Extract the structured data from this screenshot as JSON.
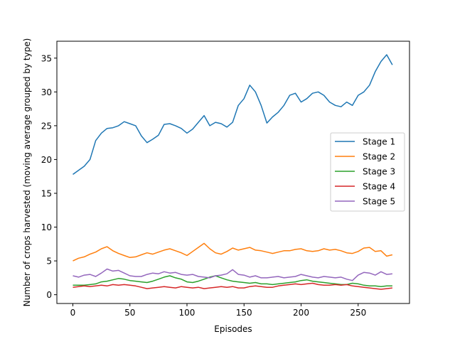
{
  "chart_data": {
    "type": "line",
    "title": "",
    "xlabel": "Episodes",
    "ylabel": "Number of crops harvested (moving average grouped by type)",
    "xlim": [
      -14,
      295
    ],
    "ylim": [
      -1.3,
      37.5
    ],
    "xticks": [
      0,
      50,
      100,
      150,
      200,
      250
    ],
    "yticks": [
      0,
      5,
      10,
      15,
      20,
      25,
      30,
      35
    ],
    "grid": false,
    "legend_position": "center-right",
    "series": [
      {
        "name": "Stage 1",
        "color": "#1f77b4",
        "points": [
          [
            0,
            17.8
          ],
          [
            5,
            18.4
          ],
          [
            10,
            19.0
          ],
          [
            15,
            20.0
          ],
          [
            20,
            22.8
          ],
          [
            25,
            23.9
          ],
          [
            30,
            24.6
          ],
          [
            35,
            24.7
          ],
          [
            40,
            25.0
          ],
          [
            45,
            25.6
          ],
          [
            50,
            25.3
          ],
          [
            55,
            25.0
          ],
          [
            60,
            23.5
          ],
          [
            65,
            22.5
          ],
          [
            70,
            23.0
          ],
          [
            75,
            23.6
          ],
          [
            80,
            25.2
          ],
          [
            85,
            25.3
          ],
          [
            90,
            25.0
          ],
          [
            95,
            24.6
          ],
          [
            100,
            23.9
          ],
          [
            105,
            24.5
          ],
          [
            110,
            25.5
          ],
          [
            115,
            26.5
          ],
          [
            120,
            25.0
          ],
          [
            125,
            25.5
          ],
          [
            130,
            25.3
          ],
          [
            135,
            24.8
          ],
          [
            140,
            25.5
          ],
          [
            145,
            28.0
          ],
          [
            150,
            29.0
          ],
          [
            155,
            31.0
          ],
          [
            160,
            30.0
          ],
          [
            165,
            28.0
          ],
          [
            170,
            25.4
          ],
          [
            175,
            26.3
          ],
          [
            180,
            27.0
          ],
          [
            185,
            28.0
          ],
          [
            190,
            29.5
          ],
          [
            195,
            29.8
          ],
          [
            200,
            28.5
          ],
          [
            205,
            29.0
          ],
          [
            210,
            29.8
          ],
          [
            215,
            30.0
          ],
          [
            220,
            29.5
          ],
          [
            225,
            28.5
          ],
          [
            230,
            28.0
          ],
          [
            235,
            27.8
          ],
          [
            240,
            28.5
          ],
          [
            245,
            28.0
          ],
          [
            250,
            29.5
          ],
          [
            255,
            30.0
          ],
          [
            260,
            31.0
          ],
          [
            265,
            33.0
          ],
          [
            270,
            34.5
          ],
          [
            275,
            35.5
          ],
          [
            280,
            34.0
          ]
        ]
      },
      {
        "name": "Stage 2",
        "color": "#ff7f0e",
        "points": [
          [
            0,
            5.0
          ],
          [
            5,
            5.4
          ],
          [
            10,
            5.6
          ],
          [
            15,
            6.0
          ],
          [
            20,
            6.3
          ],
          [
            25,
            6.8
          ],
          [
            30,
            7.1
          ],
          [
            35,
            6.5
          ],
          [
            40,
            6.1
          ],
          [
            45,
            5.8
          ],
          [
            50,
            5.5
          ],
          [
            55,
            5.6
          ],
          [
            60,
            5.9
          ],
          [
            65,
            6.2
          ],
          [
            70,
            6.0
          ],
          [
            75,
            6.3
          ],
          [
            80,
            6.6
          ],
          [
            85,
            6.8
          ],
          [
            90,
            6.5
          ],
          [
            95,
            6.2
          ],
          [
            100,
            5.8
          ],
          [
            105,
            6.4
          ],
          [
            110,
            7.0
          ],
          [
            115,
            7.6
          ],
          [
            120,
            6.8
          ],
          [
            125,
            6.2
          ],
          [
            130,
            6.0
          ],
          [
            135,
            6.4
          ],
          [
            140,
            6.9
          ],
          [
            145,
            6.6
          ],
          [
            150,
            6.8
          ],
          [
            155,
            7.0
          ],
          [
            160,
            6.6
          ],
          [
            165,
            6.5
          ],
          [
            170,
            6.3
          ],
          [
            175,
            6.1
          ],
          [
            180,
            6.3
          ],
          [
            185,
            6.5
          ],
          [
            190,
            6.5
          ],
          [
            195,
            6.7
          ],
          [
            200,
            6.8
          ],
          [
            205,
            6.5
          ],
          [
            210,
            6.4
          ],
          [
            215,
            6.5
          ],
          [
            220,
            6.8
          ],
          [
            225,
            6.6
          ],
          [
            230,
            6.7
          ],
          [
            235,
            6.5
          ],
          [
            240,
            6.2
          ],
          [
            245,
            6.1
          ],
          [
            250,
            6.4
          ],
          [
            255,
            6.9
          ],
          [
            260,
            7.0
          ],
          [
            265,
            6.4
          ],
          [
            270,
            6.5
          ],
          [
            275,
            5.7
          ],
          [
            280,
            5.9
          ]
        ]
      },
      {
        "name": "Stage 3",
        "color": "#2ca02c",
        "points": [
          [
            0,
            1.4
          ],
          [
            5,
            1.4
          ],
          [
            10,
            1.4
          ],
          [
            15,
            1.5
          ],
          [
            20,
            1.6
          ],
          [
            25,
            1.9
          ],
          [
            30,
            2.0
          ],
          [
            35,
            2.2
          ],
          [
            40,
            2.4
          ],
          [
            45,
            2.3
          ],
          [
            50,
            2.1
          ],
          [
            55,
            2.0
          ],
          [
            60,
            1.9
          ],
          [
            65,
            1.8
          ],
          [
            70,
            2.0
          ],
          [
            75,
            2.3
          ],
          [
            80,
            2.6
          ],
          [
            85,
            2.8
          ],
          [
            90,
            2.5
          ],
          [
            95,
            2.3
          ],
          [
            100,
            1.9
          ],
          [
            105,
            1.8
          ],
          [
            110,
            2.0
          ],
          [
            115,
            2.3
          ],
          [
            120,
            2.6
          ],
          [
            125,
            2.8
          ],
          [
            130,
            2.5
          ],
          [
            135,
            2.2
          ],
          [
            140,
            2.0
          ],
          [
            145,
            1.9
          ],
          [
            150,
            1.8
          ],
          [
            155,
            1.7
          ],
          [
            160,
            1.8
          ],
          [
            165,
            1.6
          ],
          [
            170,
            1.6
          ],
          [
            175,
            1.5
          ],
          [
            180,
            1.6
          ],
          [
            185,
            1.7
          ],
          [
            190,
            1.8
          ],
          [
            195,
            1.9
          ],
          [
            200,
            2.1
          ],
          [
            205,
            2.2
          ],
          [
            210,
            2.0
          ],
          [
            215,
            1.9
          ],
          [
            220,
            1.8
          ],
          [
            225,
            1.7
          ],
          [
            230,
            1.6
          ],
          [
            235,
            1.5
          ],
          [
            240,
            1.5
          ],
          [
            245,
            1.7
          ],
          [
            250,
            1.6
          ],
          [
            255,
            1.4
          ],
          [
            260,
            1.3
          ],
          [
            265,
            1.3
          ],
          [
            270,
            1.2
          ],
          [
            275,
            1.3
          ],
          [
            280,
            1.3
          ]
        ]
      },
      {
        "name": "Stage 4",
        "color": "#d62728",
        "points": [
          [
            0,
            1.1
          ],
          [
            5,
            1.2
          ],
          [
            10,
            1.3
          ],
          [
            15,
            1.2
          ],
          [
            20,
            1.3
          ],
          [
            25,
            1.4
          ],
          [
            30,
            1.3
          ],
          [
            35,
            1.5
          ],
          [
            40,
            1.4
          ],
          [
            45,
            1.5
          ],
          [
            50,
            1.4
          ],
          [
            55,
            1.3
          ],
          [
            60,
            1.1
          ],
          [
            65,
            0.9
          ],
          [
            70,
            1.0
          ],
          [
            75,
            1.1
          ],
          [
            80,
            1.2
          ],
          [
            85,
            1.1
          ],
          [
            90,
            1.0
          ],
          [
            95,
            1.2
          ],
          [
            100,
            1.1
          ],
          [
            105,
            1.0
          ],
          [
            110,
            1.1
          ],
          [
            115,
            0.9
          ],
          [
            120,
            1.0
          ],
          [
            125,
            1.1
          ],
          [
            130,
            1.2
          ],
          [
            135,
            1.1
          ],
          [
            140,
            1.2
          ],
          [
            145,
            1.0
          ],
          [
            150,
            1.0
          ],
          [
            155,
            1.2
          ],
          [
            160,
            1.3
          ],
          [
            165,
            1.2
          ],
          [
            170,
            1.1
          ],
          [
            175,
            1.1
          ],
          [
            180,
            1.3
          ],
          [
            185,
            1.4
          ],
          [
            190,
            1.5
          ],
          [
            195,
            1.6
          ],
          [
            200,
            1.5
          ],
          [
            205,
            1.6
          ],
          [
            210,
            1.7
          ],
          [
            215,
            1.5
          ],
          [
            220,
            1.4
          ],
          [
            225,
            1.4
          ],
          [
            230,
            1.5
          ],
          [
            235,
            1.4
          ],
          [
            240,
            1.5
          ],
          [
            245,
            1.3
          ],
          [
            250,
            1.2
          ],
          [
            255,
            1.1
          ],
          [
            260,
            1.0
          ],
          [
            265,
            0.9
          ],
          [
            270,
            0.8
          ],
          [
            275,
            0.9
          ],
          [
            280,
            1.0
          ]
        ]
      },
      {
        "name": "Stage 5",
        "color": "#9467bd",
        "points": [
          [
            0,
            2.8
          ],
          [
            5,
            2.6
          ],
          [
            10,
            2.9
          ],
          [
            15,
            3.0
          ],
          [
            20,
            2.7
          ],
          [
            25,
            3.2
          ],
          [
            30,
            3.8
          ],
          [
            35,
            3.5
          ],
          [
            40,
            3.6
          ],
          [
            45,
            3.2
          ],
          [
            50,
            2.8
          ],
          [
            55,
            2.7
          ],
          [
            60,
            2.7
          ],
          [
            65,
            3.0
          ],
          [
            70,
            3.2
          ],
          [
            75,
            3.1
          ],
          [
            80,
            3.4
          ],
          [
            85,
            3.2
          ],
          [
            90,
            3.3
          ],
          [
            95,
            3.0
          ],
          [
            100,
            2.9
          ],
          [
            105,
            3.0
          ],
          [
            110,
            2.7
          ],
          [
            115,
            2.6
          ],
          [
            120,
            2.5
          ],
          [
            125,
            2.8
          ],
          [
            130,
            2.9
          ],
          [
            135,
            3.1
          ],
          [
            140,
            3.7
          ],
          [
            145,
            3.0
          ],
          [
            150,
            2.9
          ],
          [
            155,
            2.6
          ],
          [
            160,
            2.8
          ],
          [
            165,
            2.5
          ],
          [
            170,
            2.5
          ],
          [
            175,
            2.6
          ],
          [
            180,
            2.7
          ],
          [
            185,
            2.5
          ],
          [
            190,
            2.6
          ],
          [
            195,
            2.7
          ],
          [
            200,
            3.0
          ],
          [
            205,
            2.8
          ],
          [
            210,
            2.6
          ],
          [
            215,
            2.5
          ],
          [
            220,
            2.7
          ],
          [
            225,
            2.6
          ],
          [
            230,
            2.5
          ],
          [
            235,
            2.6
          ],
          [
            240,
            2.3
          ],
          [
            245,
            2.1
          ],
          [
            250,
            2.9
          ],
          [
            255,
            3.3
          ],
          [
            260,
            3.2
          ],
          [
            265,
            2.9
          ],
          [
            270,
            3.4
          ],
          [
            275,
            3.0
          ],
          [
            280,
            3.1
          ]
        ]
      }
    ]
  }
}
